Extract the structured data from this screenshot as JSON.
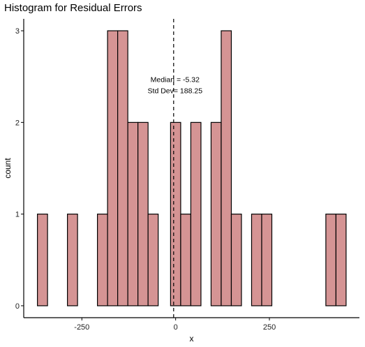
{
  "chart_data": {
    "type": "bar",
    "title": "Histogram for Residual Errors",
    "xlabel": "x",
    "ylabel": "count",
    "x_ticks": [
      -250,
      0,
      250
    ],
    "y_ticks": [
      0,
      1,
      2,
      3
    ],
    "xlim": [
      -405,
      490
    ],
    "ylim": [
      -0.13,
      3.13
    ],
    "grid": false,
    "bin_width": 27,
    "bins": [
      {
        "center": -355,
        "count": 1
      },
      {
        "center": -275,
        "count": 1
      },
      {
        "center": -195,
        "count": 1
      },
      {
        "center": -168,
        "count": 3
      },
      {
        "center": -141,
        "count": 3
      },
      {
        "center": -114,
        "count": 2
      },
      {
        "center": -87,
        "count": 2
      },
      {
        "center": -60,
        "count": 1
      },
      {
        "center": 0,
        "count": 2
      },
      {
        "center": 27,
        "count": 1
      },
      {
        "center": 54,
        "count": 2
      },
      {
        "center": 108,
        "count": 2
      },
      {
        "center": 135,
        "count": 3
      },
      {
        "center": 162,
        "count": 1
      },
      {
        "center": 216,
        "count": 1
      },
      {
        "center": 243,
        "count": 1
      },
      {
        "center": 414,
        "count": 1
      },
      {
        "center": 441,
        "count": 1
      }
    ],
    "median_line": -5.32,
    "annotations": [
      "Median = -5.32",
      "Std Dev= 188.25"
    ],
    "colors": {
      "bar_fill": "#d59494",
      "bar_stroke": "#000000",
      "median_line": "#000000"
    }
  }
}
